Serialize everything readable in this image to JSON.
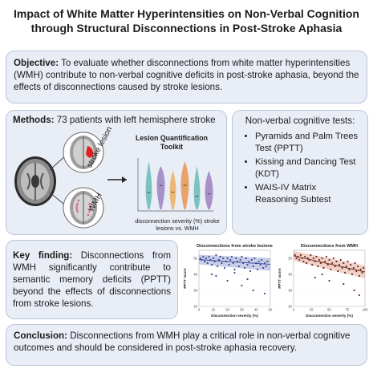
{
  "title": "Impact of White Matter Hyperintensities on Non-Verbal Cognition through Structural Disconnections in Post-Stroke Aphasia",
  "objective": {
    "label": "Objective:",
    "text": " To evaluate whether disconnections from white matter hyperintensities (WMH) contribute to non-verbal cognitive deficits in post-stroke aphasia, beyond the effects of disconnections caused by stroke lesions."
  },
  "methods": {
    "label": "Methods:",
    "text": " 73 patients with left hemisphere stroke",
    "brain_label_top": "stroke lesion",
    "brain_label_bottom": "WMH",
    "toolkit_title": "Lesion Quantification Toolkit",
    "toolkit_caption": "disconnection severity (%) stroke lesions vs. WMH",
    "violins": [
      {
        "color": "#55b3ad",
        "median": 0.35
      },
      {
        "color": "#8f72b8",
        "median": 0.55
      },
      {
        "color": "#eda54a",
        "median": 0.45
      },
      {
        "color": "#e58a3a",
        "median": 0.5
      },
      {
        "color": "#55b3ad",
        "median": 0.3
      },
      {
        "color": "#8f72b8",
        "median": 0.4
      }
    ]
  },
  "tests": {
    "heading": "Non-verbal cognitive tests:",
    "items": [
      "Pyramids and Palm Trees Test (PPTT)",
      "Kissing and Dancing Test (KDT)",
      "WAIS-IV Matrix Reasoning Subtest"
    ]
  },
  "key_finding": {
    "label": "Key finding:",
    "text": " Disconnections from WMH significantly contribute to semantic memory deficits (PPTT) beyond the effects of disconnections from stroke lesions."
  },
  "chart_data": [
    {
      "type": "scatter",
      "title": "Disconnections from stroke lesions",
      "xlabel": "Disconnection severity (%)",
      "ylabel": "PPTT score",
      "xlim": [
        0,
        50
      ],
      "ylim": [
        20,
        55
      ],
      "xticks": [
        0,
        10,
        20,
        30,
        40,
        50
      ],
      "yticks": [
        20,
        30,
        40,
        50
      ],
      "color": "#3b4a9a",
      "band_color": "#9aa6d4",
      "trend": [
        [
          0,
          49.2
        ],
        [
          50,
          46.2
        ]
      ],
      "points": [
        [
          1,
          50
        ],
        [
          2,
          49
        ],
        [
          3,
          51
        ],
        [
          4,
          48
        ],
        [
          5,
          50
        ],
        [
          6,
          47
        ],
        [
          7,
          51
        ],
        [
          8,
          49
        ],
        [
          9,
          46
        ],
        [
          10,
          50
        ],
        [
          11,
          48
        ],
        [
          12,
          52
        ],
        [
          13,
          45
        ],
        [
          14,
          49
        ],
        [
          15,
          51
        ],
        [
          16,
          47
        ],
        [
          17,
          50
        ],
        [
          18,
          44
        ],
        [
          19,
          48
        ],
        [
          20,
          50
        ],
        [
          21,
          46
        ],
        [
          22,
          49
        ],
        [
          23,
          51
        ],
        [
          24,
          47
        ],
        [
          25,
          43
        ],
        [
          26,
          50
        ],
        [
          27,
          48
        ],
        [
          28,
          45
        ],
        [
          29,
          49
        ],
        [
          30,
          51
        ],
        [
          31,
          47
        ],
        [
          32,
          44
        ],
        [
          33,
          50
        ],
        [
          34,
          46
        ],
        [
          35,
          48
        ],
        [
          36,
          42
        ],
        [
          37,
          49
        ],
        [
          38,
          45
        ],
        [
          39,
          50
        ],
        [
          40,
          47
        ],
        [
          41,
          43
        ],
        [
          42,
          48
        ],
        [
          43,
          46
        ],
        [
          44,
          49
        ],
        [
          45,
          44
        ],
        [
          46,
          47
        ],
        [
          47,
          45
        ],
        [
          48,
          48
        ],
        [
          12,
          39
        ],
        [
          20,
          36
        ],
        [
          30,
          33
        ],
        [
          38,
          30
        ],
        [
          46,
          28
        ],
        [
          9,
          40
        ],
        [
          25,
          41
        ],
        [
          34,
          37
        ]
      ]
    },
    {
      "type": "scatter",
      "title": "Disconnections from WMH",
      "xlabel": "Disconnection severity (%)",
      "ylabel": "PPTT score",
      "xlim": [
        0,
        100
      ],
      "ylim": [
        20,
        55
      ],
      "xticks": [
        0,
        25,
        50,
        75,
        100
      ],
      "yticks": [
        20,
        30,
        40,
        50
      ],
      "color": "#6e2e24",
      "band_color": "#e1aa9a",
      "trend": [
        [
          0,
          51.5
        ],
        [
          100,
          41.5
        ]
      ],
      "points": [
        [
          2,
          52
        ],
        [
          4,
          50
        ],
        [
          6,
          51
        ],
        [
          8,
          49
        ],
        [
          10,
          52
        ],
        [
          12,
          50
        ],
        [
          14,
          48
        ],
        [
          16,
          51
        ],
        [
          18,
          47
        ],
        [
          20,
          50
        ],
        [
          22,
          49
        ],
        [
          24,
          52
        ],
        [
          26,
          46
        ],
        [
          28,
          50
        ],
        [
          30,
          48
        ],
        [
          32,
          51
        ],
        [
          34,
          45
        ],
        [
          36,
          49
        ],
        [
          38,
          47
        ],
        [
          40,
          50
        ],
        [
          42,
          44
        ],
        [
          44,
          48
        ],
        [
          46,
          51
        ],
        [
          48,
          46
        ],
        [
          50,
          49
        ],
        [
          52,
          43
        ],
        [
          54,
          47
        ],
        [
          56,
          50
        ],
        [
          58,
          45
        ],
        [
          60,
          48
        ],
        [
          62,
          42
        ],
        [
          64,
          46
        ],
        [
          66,
          49
        ],
        [
          68,
          44
        ],
        [
          70,
          47
        ],
        [
          72,
          41
        ],
        [
          74,
          45
        ],
        [
          76,
          48
        ],
        [
          78,
          43
        ],
        [
          80,
          46
        ],
        [
          82,
          40
        ],
        [
          84,
          44
        ],
        [
          86,
          47
        ],
        [
          88,
          42
        ],
        [
          90,
          45
        ],
        [
          92,
          39
        ],
        [
          94,
          43
        ],
        [
          96,
          41
        ],
        [
          98,
          44
        ],
        [
          30,
          38
        ],
        [
          50,
          36
        ],
        [
          70,
          34
        ],
        [
          85,
          30
        ],
        [
          92,
          27
        ],
        [
          40,
          40
        ]
      ]
    }
  ],
  "conclusion": {
    "label": "Conclusion:",
    "text": " Disconnections from WMH play a critical role in non-verbal cognitive outcomes and should be considered in post-stroke aphasia recovery."
  }
}
